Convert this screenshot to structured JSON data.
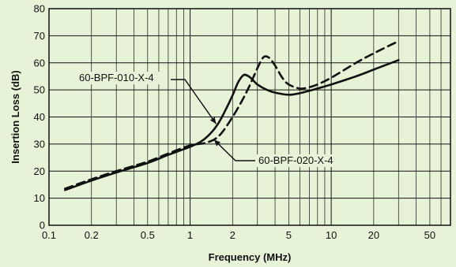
{
  "chart_data": {
    "type": "line",
    "title": "",
    "xlabel": "Frequency (MHz)",
    "ylabel": "Insertion Loss (dB)",
    "x_scale": "log",
    "xlim": [
      0.1,
      70
    ],
    "ylim": [
      0,
      80
    ],
    "grid": true,
    "background_color": "#e6f3d6",
    "x_ticks": [
      0.1,
      0.2,
      0.5,
      1,
      2,
      5,
      10,
      20,
      50
    ],
    "x_tick_labels": [
      "0.1",
      "0.2",
      "0.5",
      "1",
      "2",
      "5",
      "10",
      "20",
      "50"
    ],
    "y_ticks": [
      0,
      10,
      20,
      30,
      40,
      50,
      60,
      70,
      80
    ],
    "y_tick_labels": [
      "0",
      "10",
      "20",
      "30",
      "40",
      "50",
      "60",
      "70",
      "80"
    ],
    "series": [
      {
        "name": "60-BPF-010-X-4",
        "style": "solid",
        "color": "#111111",
        "x": [
          0.13,
          0.2,
          0.3,
          0.5,
          0.7,
          1.0,
          1.2,
          1.4,
          1.6,
          1.8,
          2.0,
          2.2,
          2.4,
          2.6,
          2.8,
          3.0,
          3.5,
          4.0,
          5.0,
          6.0,
          8.0,
          10,
          15,
          20,
          30
        ],
        "y": [
          13,
          16.5,
          19.5,
          23,
          26,
          29,
          31,
          34,
          38,
          43,
          48,
          53,
          55.5,
          55,
          53.5,
          52,
          50,
          49,
          48.2,
          48.8,
          50.5,
          52,
          55,
          57.5,
          61
        ]
      },
      {
        "name": "60-BPF-020-X-4",
        "style": "dashed",
        "color": "#111111",
        "x": [
          0.13,
          0.2,
          0.3,
          0.5,
          0.7,
          1.0,
          1.3,
          1.6,
          2.0,
          2.5,
          3.0,
          3.3,
          3.6,
          4.0,
          4.5,
          5.0,
          6.0,
          7.0,
          8.0,
          10,
          15,
          20,
          30
        ],
        "y": [
          13.5,
          17,
          20,
          23.5,
          26.5,
          29.5,
          30.5,
          33,
          40,
          49,
          58,
          62,
          62,
          59,
          54.5,
          52,
          50.5,
          51,
          52,
          54.5,
          60,
          63.5,
          68
        ]
      }
    ],
    "annotations": [
      {
        "text": "60-BPF-010-X-4",
        "series": 0,
        "point_x": 1.55,
        "point_y": 37
      },
      {
        "text": "60-BPF-020-X-4",
        "series": 1,
        "point_x": 1.45,
        "point_y": 32
      }
    ]
  }
}
